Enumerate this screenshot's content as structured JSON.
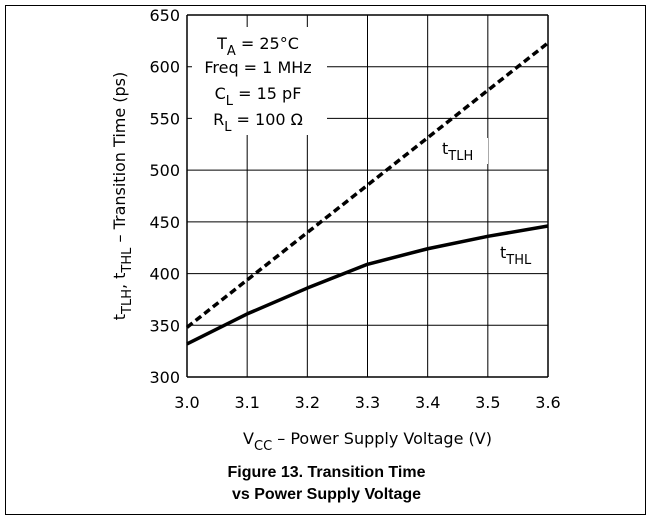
{
  "figure": {
    "caption_line1": "Figure 13. Transition Time",
    "caption_line2": "vs Power Supply Voltage"
  },
  "chart_data": {
    "type": "line",
    "xlabel": {
      "main": "V",
      "sub": "CC",
      "rest": " – Power Supply Voltage (V)"
    },
    "ylabel": {
      "p1": "t",
      "s1": "TLH",
      "p2": ", t",
      "s2": "THL",
      "p3": " – Transition Time (ps)"
    },
    "xlim": [
      3.0,
      3.6
    ],
    "ylim": [
      300,
      650
    ],
    "x_ticks": [
      3.0,
      3.1,
      3.2,
      3.3,
      3.4,
      3.5,
      3.6
    ],
    "x_tick_labels": [
      "3.0",
      "3.1",
      "3.2",
      "3.3",
      "3.4",
      "3.5",
      "3.6"
    ],
    "y_ticks": [
      300,
      350,
      400,
      450,
      500,
      550,
      600,
      650
    ],
    "y_tick_labels": [
      "300",
      "350",
      "400",
      "450",
      "500",
      "550",
      "600",
      "650"
    ],
    "grid": true,
    "annotations": [
      {
        "main": "T",
        "sub": "A",
        "rest": " = 25°C"
      },
      {
        "main": "Freq = 1 MHz",
        "sub": "",
        "rest": ""
      },
      {
        "main": "C",
        "sub": "L",
        "rest": " = 15 pF"
      },
      {
        "main": "R",
        "sub": "L",
        "rest": " = 100 Ω"
      }
    ],
    "series": [
      {
        "name": "tTLH",
        "label_main": "t",
        "label_sub": "TLH",
        "style": "dashed",
        "color": "#000000",
        "x": [
          3.0,
          3.6
        ],
        "y": [
          348,
          623
        ]
      },
      {
        "name": "tTHL",
        "label_main": "t",
        "label_sub": "THL",
        "style": "solid",
        "color": "#000000",
        "x": [
          3.0,
          3.1,
          3.2,
          3.3,
          3.4,
          3.5,
          3.6
        ],
        "y": [
          332,
          361,
          386,
          409,
          424,
          436,
          446
        ]
      }
    ]
  }
}
